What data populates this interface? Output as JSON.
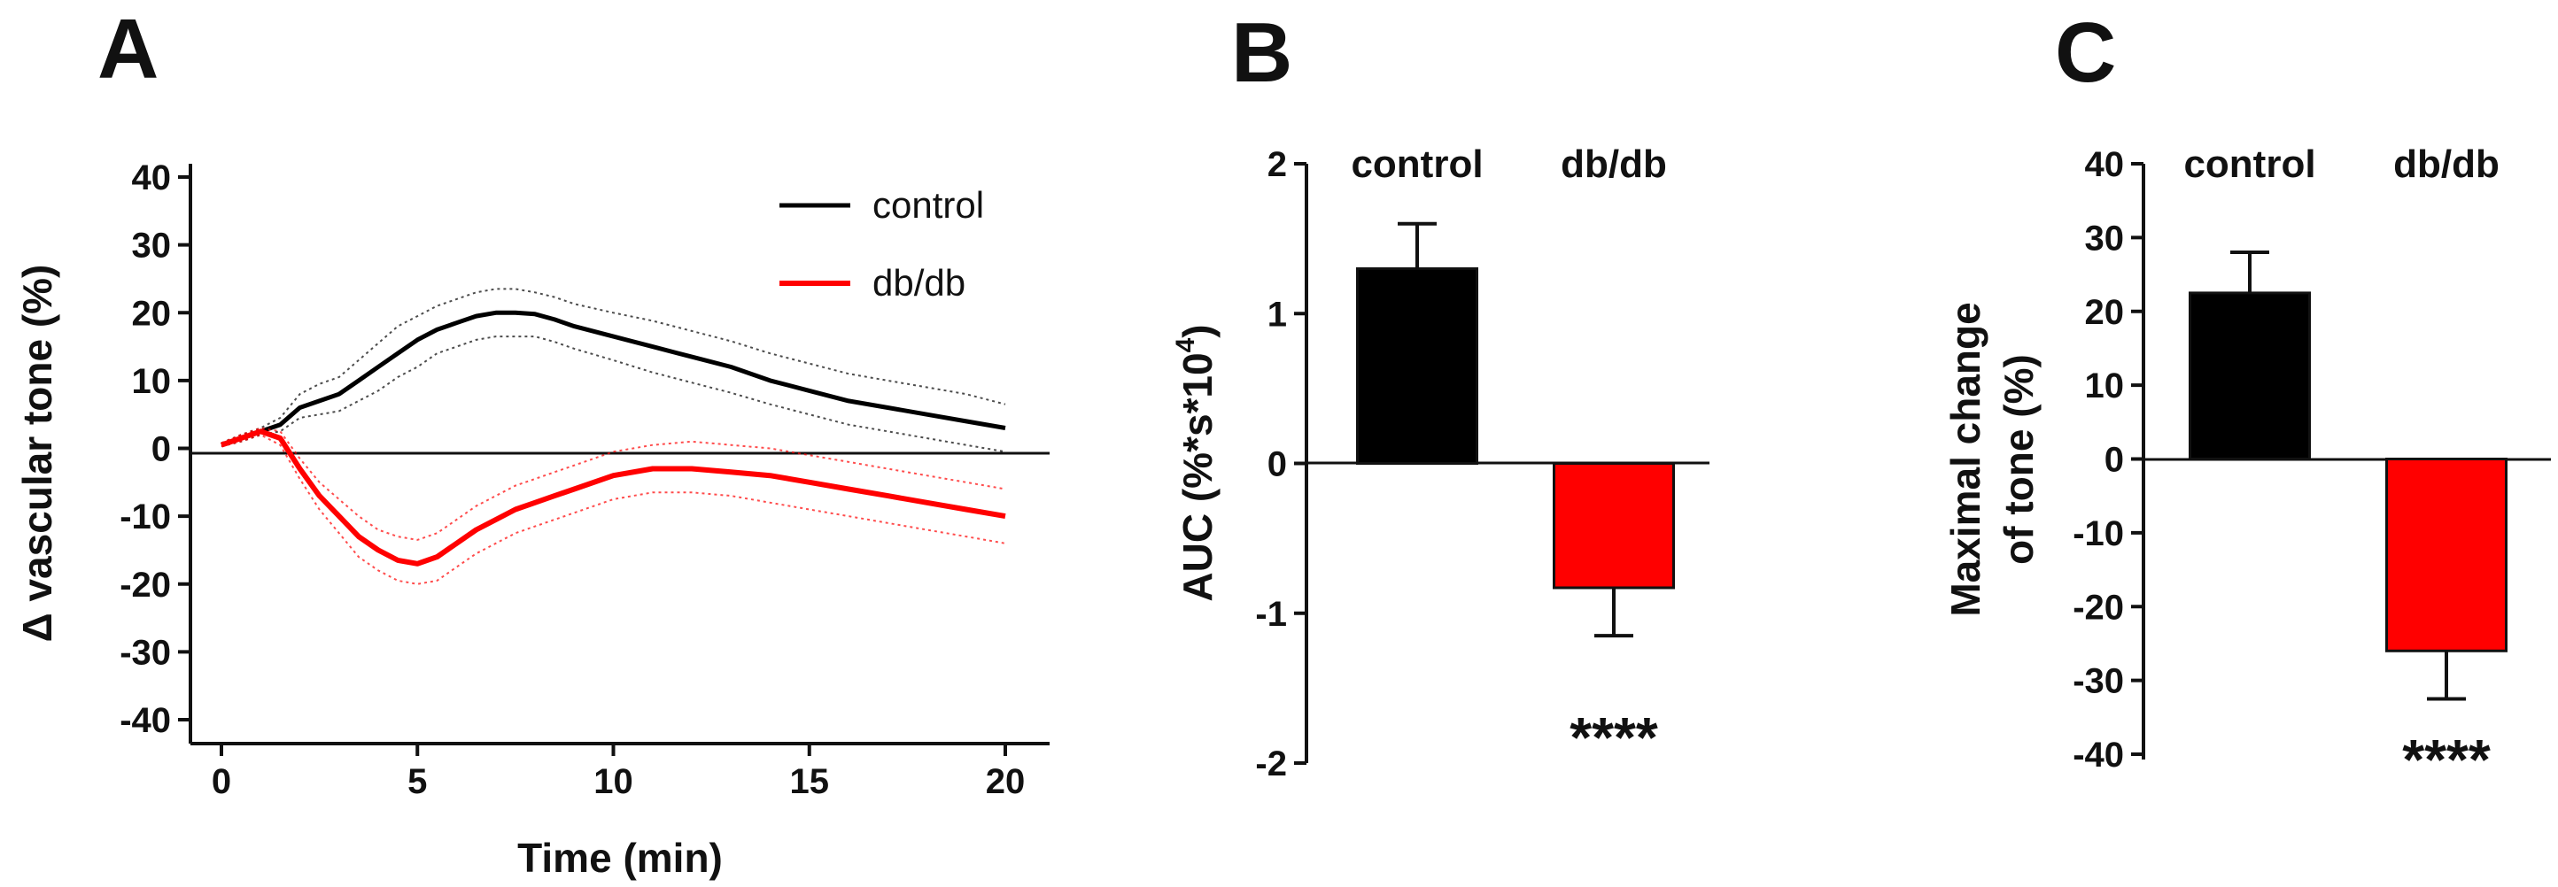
{
  "chart_data": [
    {
      "panel": "A",
      "type": "line",
      "title": "",
      "xlabel": "Time (min)",
      "ylabel": "Δ vascular tone (%)",
      "xlim": [
        0,
        20
      ],
      "ylim": [
        -40,
        40
      ],
      "xticks": [
        0,
        5,
        10,
        15,
        20
      ],
      "yticks": [
        40,
        30,
        20,
        10,
        0,
        -10,
        -20,
        -30,
        -40
      ],
      "legend_position": "top-right",
      "series": [
        {
          "name": "control",
          "color": "#000000",
          "x": [
            0,
            0.5,
            1,
            1.5,
            2,
            2.5,
            3,
            3.5,
            4,
            4.5,
            5,
            5.5,
            6,
            6.5,
            7,
            7.5,
            8,
            8.5,
            9,
            10,
            11,
            12,
            13,
            14,
            15,
            16,
            17,
            18,
            19,
            20
          ],
          "y": [
            0.5,
            1.5,
            2.5,
            3.5,
            6,
            7,
            8,
            10,
            12,
            14,
            16,
            17.5,
            18.5,
            19.5,
            20,
            20,
            19.8,
            19,
            18,
            16.5,
            15,
            13.5,
            12,
            10,
            8.5,
            7,
            6,
            5,
            4,
            3
          ],
          "upper": [
            0.8,
            2,
            3,
            4.5,
            8,
            9.5,
            10.5,
            13,
            15.5,
            18,
            19.5,
            21,
            22,
            23,
            23.5,
            23.5,
            23,
            22.3,
            21.3,
            20,
            18.8,
            17.3,
            15.8,
            14,
            12.5,
            11,
            10,
            9,
            8,
            6.5
          ],
          "lower": [
            0.3,
            1,
            2,
            2.5,
            4.5,
            5,
            5.5,
            7,
            8.5,
            10.5,
            12,
            14,
            15,
            16,
            16.5,
            16.5,
            16.5,
            15.7,
            14.7,
            13,
            11.2,
            9.7,
            8.2,
            6.5,
            5,
            3.5,
            2.5,
            1.5,
            0.5,
            -0.5
          ]
        },
        {
          "name": "db/db",
          "color": "#ff0000",
          "x": [
            0,
            0.5,
            1,
            1.5,
            2,
            2.5,
            3,
            3.5,
            4,
            4.5,
            5,
            5.5,
            6,
            6.5,
            7,
            7.5,
            8,
            8.5,
            9,
            10,
            11,
            12,
            13,
            14,
            15,
            16,
            17,
            18,
            19,
            20
          ],
          "y": [
            0.5,
            1.5,
            2.5,
            1.5,
            -3,
            -7,
            -10,
            -13,
            -15,
            -16.5,
            -17,
            -16,
            -14,
            -12,
            -10.5,
            -9,
            -8,
            -7,
            -6,
            -4,
            -3,
            -3,
            -3.5,
            -4,
            -5,
            -6,
            -7,
            -8,
            -9,
            -10
          ],
          "upper": [
            0.8,
            2,
            3,
            2.5,
            -1.5,
            -5,
            -7.5,
            -10,
            -12,
            -13,
            -13.5,
            -12.5,
            -10.5,
            -8.5,
            -7,
            -5.5,
            -4.5,
            -3.5,
            -2.5,
            -0.5,
            0.5,
            1,
            0.5,
            0,
            -1,
            -2,
            -3,
            -4,
            -5,
            -6
          ],
          "lower": [
            0.3,
            1,
            2,
            0.5,
            -4.5,
            -9,
            -12.5,
            -16,
            -18,
            -19.5,
            -20,
            -19.5,
            -17.5,
            -15.5,
            -14,
            -12.5,
            -11.5,
            -10.5,
            -9.5,
            -7.5,
            -6.5,
            -6.5,
            -7,
            -8,
            -9,
            -10,
            -11,
            -12,
            -13,
            -14
          ]
        }
      ]
    },
    {
      "panel": "B",
      "type": "bar",
      "title": "",
      "xlabel": "",
      "ylabel": "AUC (%*s*10",
      "ylabel_superscript": "4",
      "ylabel_close": ")",
      "ylim": [
        -2,
        2
      ],
      "yticks": [
        2,
        1,
        0,
        -1,
        -2
      ],
      "categories": [
        "control",
        "db/db"
      ],
      "values": [
        1.3,
        -0.83
      ],
      "errors": [
        0.3,
        0.32
      ],
      "colors": [
        "#000000",
        "#ff0000"
      ],
      "annotations": [
        "",
        "****"
      ]
    },
    {
      "panel": "C",
      "type": "bar",
      "title": "",
      "xlabel": "",
      "ylabel_lines": [
        "Maximal change",
        "of tone  (%)"
      ],
      "ylim": [
        -40,
        40
      ],
      "yticks": [
        40,
        30,
        20,
        10,
        0,
        -10,
        -20,
        -30,
        -40
      ],
      "categories": [
        "control",
        "db/db"
      ],
      "values": [
        22.5,
        -26
      ],
      "errors": [
        5.5,
        6.5
      ],
      "colors": [
        "#000000",
        "#ff0000"
      ],
      "annotations": [
        "",
        "****"
      ]
    }
  ]
}
